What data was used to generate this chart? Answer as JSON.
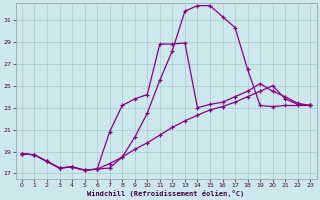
{
  "xlabel": "Windchill (Refroidissement éolien,°C)",
  "bg_color": "#cce8ed",
  "grid_color": "#aacccc",
  "line_color": "#880088",
  "xlim": [
    -0.5,
    23.5
  ],
  "ylim": [
    16.5,
    32.5
  ],
  "xticks": [
    0,
    1,
    2,
    3,
    4,
    5,
    6,
    7,
    8,
    9,
    10,
    11,
    12,
    13,
    14,
    15,
    16,
    17,
    18,
    19,
    20,
    21,
    22,
    23
  ],
  "yticks": [
    17,
    19,
    21,
    23,
    25,
    27,
    29,
    31
  ],
  "line1_x": [
    0,
    1,
    2,
    3,
    4,
    5,
    6,
    7,
    8,
    9,
    10,
    11,
    12,
    13,
    14,
    15,
    16,
    17,
    18,
    19,
    20,
    21,
    22,
    23
  ],
  "line1_y": [
    18.8,
    18.7,
    18.1,
    17.5,
    17.6,
    17.3,
    17.4,
    17.5,
    18.5,
    20.3,
    22.5,
    25.5,
    28.2,
    31.8,
    32.3,
    32.3,
    31.3,
    30.3,
    26.5,
    23.2,
    23.1,
    23.2,
    23.2,
    23.2
  ],
  "line2_x": [
    0,
    1,
    2,
    3,
    4,
    5,
    6,
    7,
    8,
    9,
    10,
    11,
    12,
    13,
    14,
    15,
    16,
    17,
    18,
    19,
    20,
    21,
    22,
    23
  ],
  "line2_y": [
    18.8,
    18.7,
    18.1,
    17.5,
    17.6,
    17.3,
    17.4,
    20.8,
    23.2,
    23.8,
    24.2,
    28.8,
    28.8,
    28.9,
    23.0,
    23.3,
    23.5,
    24.0,
    24.5,
    25.2,
    24.5,
    24.0,
    23.4,
    23.2
  ],
  "line3_x": [
    0,
    1,
    2,
    3,
    4,
    5,
    6,
    7,
    8,
    9,
    10,
    11,
    12,
    13,
    14,
    15,
    16,
    17,
    18,
    19,
    20,
    21,
    22,
    23
  ],
  "line3_y": [
    18.8,
    18.7,
    18.1,
    17.5,
    17.6,
    17.3,
    17.4,
    17.9,
    18.5,
    19.2,
    19.8,
    20.5,
    21.2,
    21.8,
    22.3,
    22.8,
    23.1,
    23.5,
    24.0,
    24.5,
    25.0,
    23.8,
    23.3,
    23.2
  ]
}
